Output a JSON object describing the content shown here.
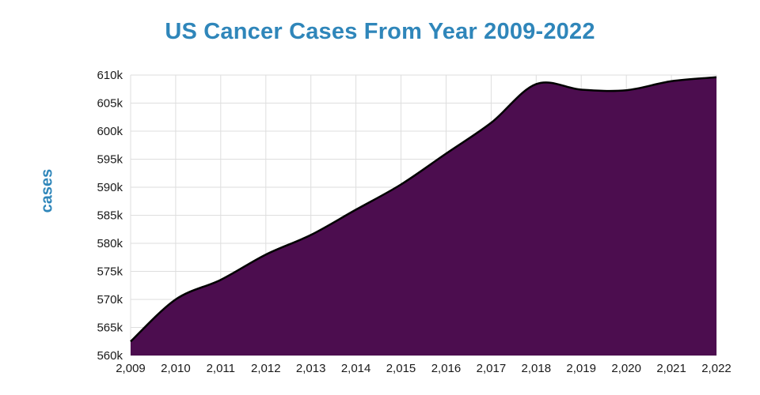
{
  "chart_data": {
    "type": "area",
    "title": "US Cancer Cases From Year 2009-2022",
    "ylabel": "cases",
    "xlabel": "",
    "x": [
      2009,
      2010,
      2011,
      2012,
      2013,
      2014,
      2015,
      2016,
      2017,
      2018,
      2019,
      2020,
      2021,
      2022
    ],
    "categories": [
      "2,009",
      "2,010",
      "2,011",
      "2,012",
      "2,013",
      "2,014",
      "2,015",
      "2,016",
      "2,017",
      "2,018",
      "2,019",
      "2,020",
      "2,021",
      "2,022"
    ],
    "series": [
      {
        "name": "cases",
        "values": [
          562500,
          570000,
          573500,
          578000,
          581500,
          586000,
          590500,
          596000,
          601500,
          608400,
          607400,
          607300,
          608900,
          609600
        ]
      }
    ],
    "ylim": [
      560000,
      610000
    ],
    "ytick_step": 5000,
    "ytick_labels": [
      "560k",
      "565k",
      "570k",
      "575k",
      "580k",
      "585k",
      "590k",
      "595k",
      "600k",
      "605k",
      "610k"
    ],
    "grid": true,
    "legend": false,
    "colors": {
      "fill": "#4c0d4f",
      "line": "#000000",
      "title": "#2f86ba",
      "axis_label": "#2f86ba",
      "grid": "#dedede",
      "tick_text": "#1a1a1a"
    }
  }
}
